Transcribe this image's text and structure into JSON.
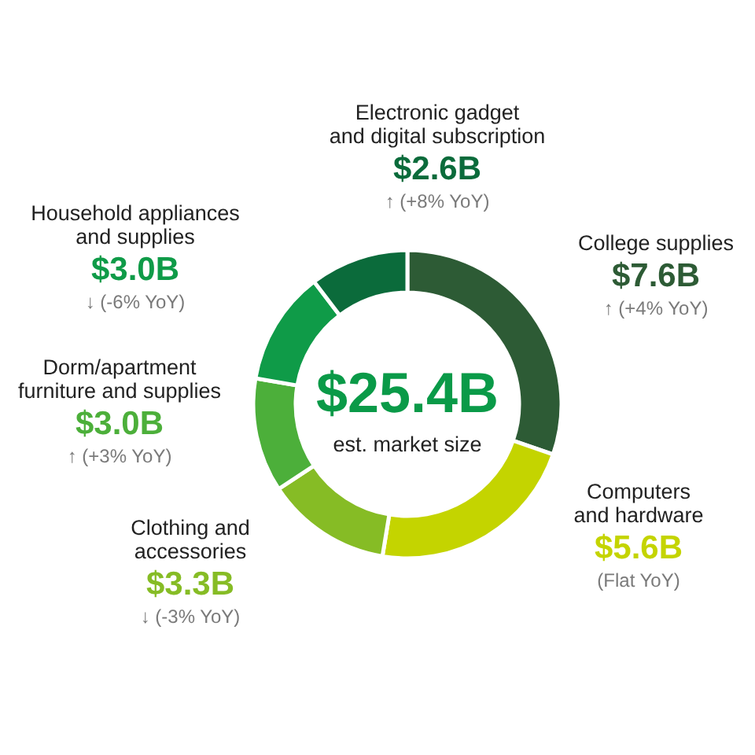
{
  "chart_data": {
    "type": "donut",
    "title": "$25.4B",
    "subtitle": "est. market size",
    "categories": [
      "College supplies",
      "Computers\nand hardware",
      "Clothing and\naccessories",
      "Dorm/apartment\nfurniture and supplies",
      "Household appliances\nand supplies",
      "Electronic gadget\nand digital subscription"
    ],
    "values": [
      7.6,
      5.6,
      3.3,
      3.0,
      3.0,
      2.6
    ],
    "colors": [
      "#2d5b35",
      "#c4d400",
      "#86bc25",
      "#4caf3a",
      "#0f9b48",
      "#0b6b3b"
    ],
    "value_labels": [
      "$7.6B",
      "$5.6B",
      "$3.3B",
      "$3.0B",
      "$3.0B",
      "$2.6B"
    ],
    "annotations": [
      {
        "text": "↑ (+4% YoY)",
        "x": "College supplies"
      },
      {
        "text": "(Flat YoY)",
        "x": "Computers\nand hardware"
      },
      {
        "text": "↓ (-3% YoY)",
        "x": "Clothing and\naccessories"
      },
      {
        "text": "↑ (+3% YoY)",
        "x": "Dorm/apartment\nfurniture and supplies"
      },
      {
        "text": "↓ (-6% YoY)",
        "x": "Household appliances\nand supplies"
      },
      {
        "text": "↑ (+8% YoY)",
        "x": "Electronic gadget\nand digital subscription"
      }
    ]
  }
}
